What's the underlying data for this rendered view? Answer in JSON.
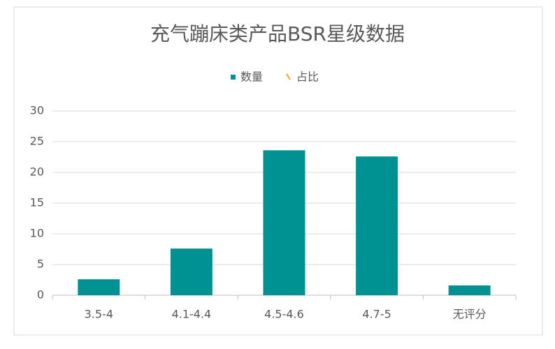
{
  "chart_data": {
    "type": "bar",
    "title": "充气蹦床类产品BSR星级数据",
    "categories": [
      "3.5-4",
      "4.1-4.4",
      "4.5-4.6",
      "4.7-5",
      "无评分"
    ],
    "series": [
      {
        "name": "数量",
        "color": "#009193",
        "values": [
          2.6,
          7.6,
          23.6,
          22.6,
          1.6
        ]
      },
      {
        "name": "占比",
        "color": "#f0a020",
        "values": [
          null,
          null,
          null,
          null,
          null
        ]
      }
    ],
    "ylim": [
      0,
      30
    ],
    "yticks": [
      0,
      5,
      10,
      15,
      20,
      25,
      30
    ],
    "grid": true,
    "legend": "top"
  }
}
